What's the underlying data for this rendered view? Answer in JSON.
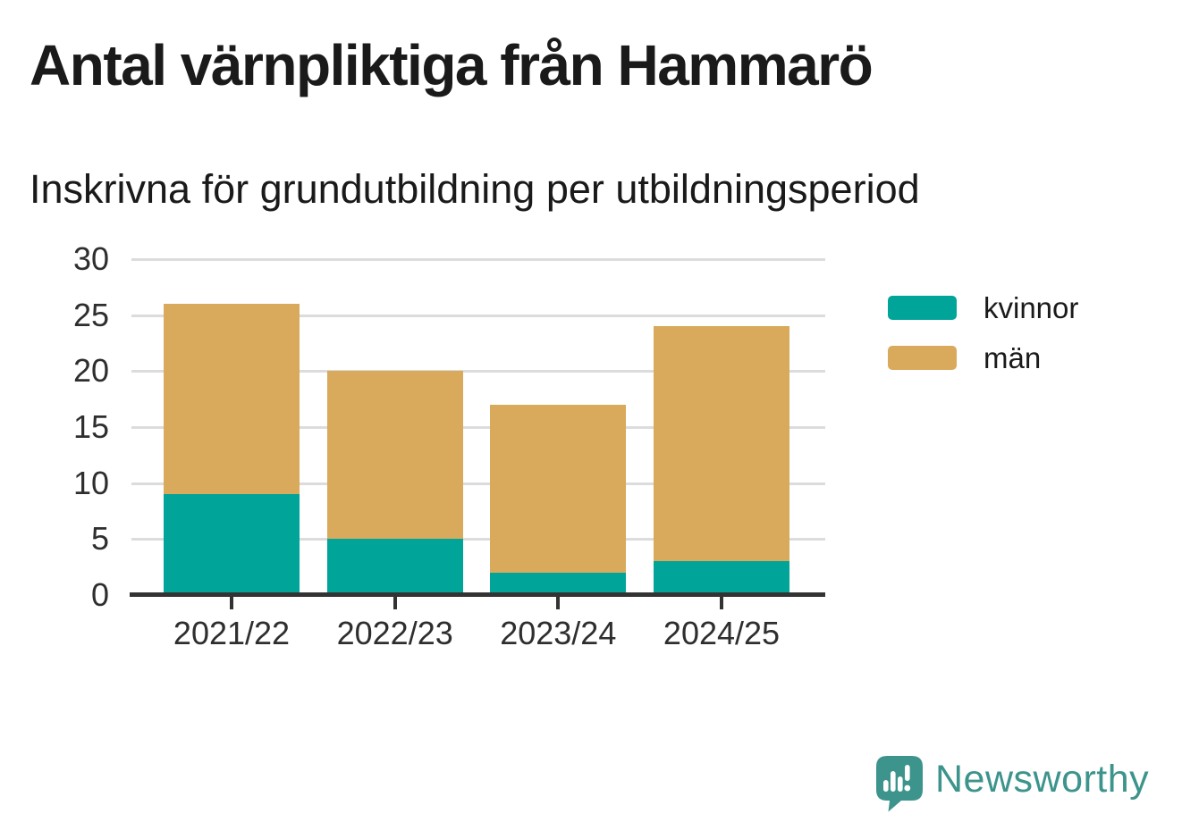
{
  "header": {
    "title": "Antal värnpliktiga från Hammarö",
    "subtitle": "Inskrivna för grundutbildning per utbildningsperiod"
  },
  "chart_data": {
    "type": "bar",
    "stacked": true,
    "title": "Antal värnpliktiga från Hammarö",
    "subtitle": "Inskrivna för grundutbildning per utbildningsperiod",
    "categories": [
      "2021/22",
      "2022/23",
      "2023/24",
      "2024/25"
    ],
    "series": [
      {
        "name": "kvinnor",
        "color": "#00a499",
        "values": [
          9,
          5,
          2,
          3
        ]
      },
      {
        "name": "män",
        "color": "#d9a95c",
        "values": [
          17,
          15,
          15,
          21
        ]
      }
    ],
    "xlabel": "",
    "ylabel": "",
    "ylim": [
      0,
      30
    ],
    "yticks": [
      0,
      5,
      10,
      15,
      20,
      25,
      30
    ],
    "grid": true,
    "legend_position": "right"
  },
  "branding": {
    "logo_text": "Newsworthy",
    "logo_icon": "speech-bubble-bar-chart-icon",
    "logo_color": "#3d948c"
  },
  "colors": {
    "background": "#ffffff",
    "text": "#1a1a1a",
    "axis": "#333333",
    "gridline": "#dcdcdc",
    "series_kvinnor": "#00a499",
    "series_man": "#d9a95c"
  }
}
